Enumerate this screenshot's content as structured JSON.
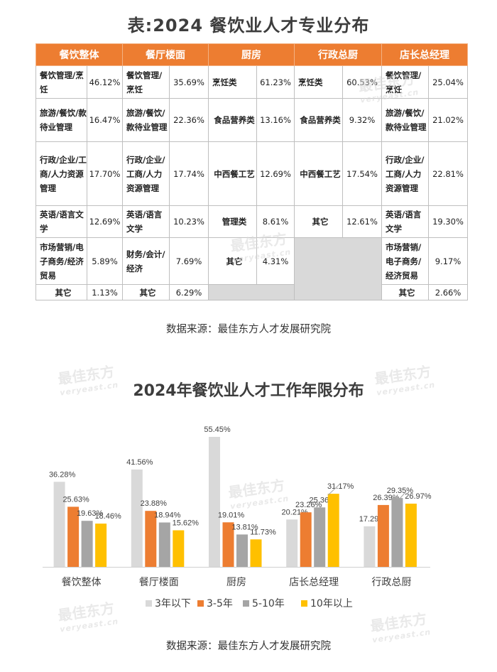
{
  "table": {
    "title": "表:2024 餐饮业人才专业分布",
    "headers": [
      "餐饮整体",
      "餐厅楼面",
      "厨房",
      "行政总厨",
      "店长总经理"
    ],
    "rows": [
      [
        [
          "餐饮管理/烹饪",
          "46.12%"
        ],
        [
          "餐饮管理/烹饪",
          "35.69%"
        ],
        [
          "烹饪类",
          "61.23%"
        ],
        [
          "烹饪类",
          "60.53%"
        ],
        [
          "餐饮管理/烹饪",
          "25.04%"
        ]
      ],
      [
        [
          "旅游/餐饮/款待业管理",
          "16.47%"
        ],
        [
          "旅游/餐饮/款待业管理",
          "22.36%"
        ],
        [
          "食品营养类",
          "13.16%"
        ],
        [
          "食品营养类",
          "9.32%"
        ],
        [
          "旅游/餐饮/款待业管理",
          "21.02%"
        ]
      ],
      [
        [
          "行政/企业/工商/人力资源管理",
          "17.70%"
        ],
        [
          "行政/企业/工商/人力资源管理",
          "17.74%"
        ],
        [
          "中西餐工艺",
          "12.69%"
        ],
        [
          "中西餐工艺",
          "17.54%"
        ],
        [
          "行政/企业/工商/人力资源管理",
          "22.81%"
        ]
      ],
      [
        [
          "英语/语言文学",
          "12.69%"
        ],
        [
          "英语/语言文学",
          "10.23%"
        ],
        [
          "管理类",
          "8.61%"
        ],
        [
          "其它",
          "12.61%"
        ],
        [
          "英语/语言文学",
          "19.30%"
        ]
      ],
      [
        [
          "市场营销/电子商务/经济贸易",
          "5.89%"
        ],
        [
          "财务/会计/经济",
          "7.69%"
        ],
        [
          "其它",
          "4.31%"
        ],
        null,
        [
          "市场营销/电子商务/经济贸易",
          "9.17%"
        ]
      ],
      [
        [
          "其它",
          "1.13%"
        ],
        [
          "其它",
          "6.29%"
        ],
        null,
        null,
        [
          "其它",
          "2.66%"
        ]
      ]
    ]
  },
  "source_label": "数据来源：最佳东方人才发展研究院",
  "watermark": {
    "brand": "最佳东方",
    "domain": "veryeast.cn"
  },
  "chart_data": {
    "type": "bar",
    "title": "2024年餐饮业人才工作年限分布",
    "categories": [
      "餐饮整体",
      "餐厅楼面",
      "厨房",
      "店长总经理",
      "行政总厨"
    ],
    "series": [
      {
        "name": "3年以下",
        "color": "#d9d9d9",
        "values": [
          36.28,
          41.56,
          55.45,
          20.21,
          17.29
        ]
      },
      {
        "name": "3-5年",
        "color": "#ed7d31",
        "values": [
          25.63,
          23.88,
          19.01,
          23.26,
          26.39
        ]
      },
      {
        "name": "5-10年",
        "color": "#a5a5a5",
        "values": [
          19.63,
          18.94,
          13.81,
          25.36,
          29.35
        ]
      },
      {
        "name": "10年以上",
        "color": "#ffc000",
        "values": [
          18.46,
          15.62,
          11.73,
          31.17,
          26.97
        ]
      }
    ],
    "ylim": [
      0,
      60
    ],
    "xlabel": "",
    "ylabel": "",
    "grid": false,
    "legend": "bottom",
    "value_format": "percent-2dp"
  }
}
